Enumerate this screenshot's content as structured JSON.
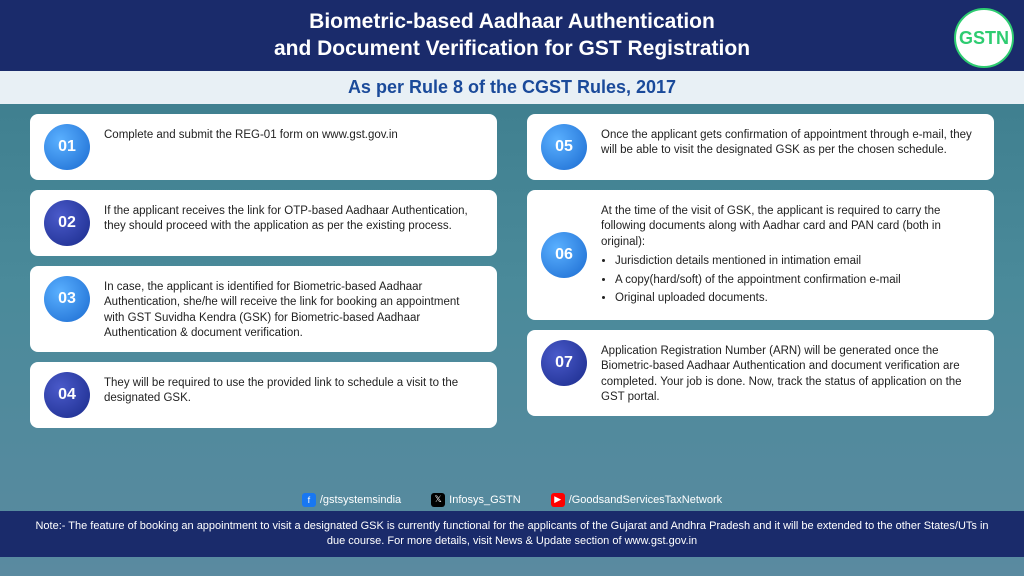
{
  "header": {
    "title": "Biometric-based Aadhaar Authentication\nand Document Verification for GST Registration",
    "logo_text": "GSTN"
  },
  "subtitle": "As per Rule 8 of the CGST Rules, 2017",
  "items": [
    {
      "num": "01",
      "text": "Complete and submit the REG-01 form on www.gst.gov.in",
      "col": 0,
      "dark": false
    },
    {
      "num": "02",
      "text": "If the applicant receives the link for OTP-based Aadhaar Authentication, they should proceed with the application as per the existing process.",
      "col": 0,
      "dark": true
    },
    {
      "num": "03",
      "text": "In case, the applicant is identified for Biometric-based Aadhaar Authentication, she/he will receive the link for booking an appointment with GST Suvidha Kendra (GSK) for Biometric-based Aadhaar Authentication & document verification.",
      "col": 0,
      "dark": false
    },
    {
      "num": "04",
      "text": "They will be required to use the provided link to schedule a visit to the designated GSK.",
      "col": 0,
      "dark": true
    },
    {
      "num": "05",
      "text": "Once the applicant gets confirmation of appointment through e-mail, they will be able to visit the designated GSK as per the chosen schedule.",
      "col": 1,
      "dark": false
    },
    {
      "num": "06",
      "text": "At the time of the visit of GSK, the applicant is required to carry the following documents along with Aadhar card and PAN card (both in original):",
      "col": 1,
      "dark": false,
      "bullets": [
        "Jurisdiction details mentioned in intimation email",
        "A copy(hard/soft) of the appointment confirmation e-mail",
        "Original uploaded documents."
      ]
    },
    {
      "num": "07",
      "text": "Application Registration Number (ARN) will be generated once the Biometric-based Aadhaar Authentication and document verification are completed. Your job is done. Now, track the status of application on the GST portal.",
      "col": 1,
      "dark": true
    }
  ],
  "socials": {
    "fb": "/gstsystemsindia",
    "x": "Infosys_GSTN",
    "yt": "/GoodsandServicesTaxNetwork"
  },
  "note": "Note:- The feature of booking an appointment to visit a designated GSK is currently functional for the applicants of the Gujarat and Andhra Pradesh and it will be extended to the other States/UTs in due course. For more details, visit News & Update section of www.gst.gov.in",
  "colors": {
    "header_bg": "#1a2b6b",
    "subtitle_bg": "#e8f0f5",
    "subtitle_color": "#1a4a9a",
    "body_grad_top": "#3a7a8a",
    "body_grad_bot": "#5a8aa0",
    "num_light_a": "#5ab0ff",
    "num_light_b": "#1a6ad0",
    "num_dark_a": "#4a5aca",
    "num_dark_b": "#1a2b8b"
  }
}
